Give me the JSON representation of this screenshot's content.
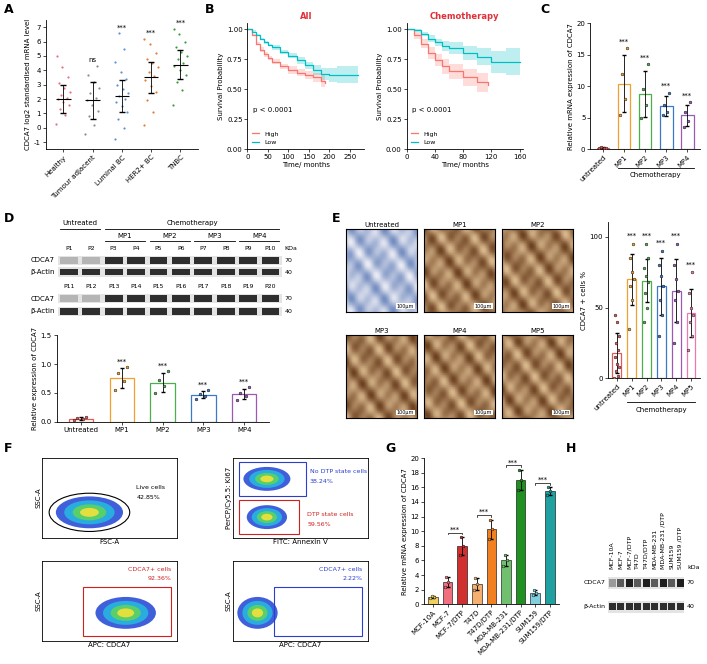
{
  "chart_data": [
    {
      "panel": "A",
      "type": "dot_plot",
      "categories": [
        "Healthy",
        "Tumour adjacent",
        "Luminal BC",
        "HER2+ BC",
        "TNBC"
      ],
      "colors": [
        "#e8707d",
        "#8c8c8c",
        "#5b8fd1",
        "#e07b39",
        "#3a9a3a"
      ],
      "points": [
        [
          0.3,
          0.9,
          1.3,
          1.6,
          1.8,
          2.0,
          2.1,
          2.3,
          2.5,
          2.8,
          3.1,
          3.5,
          4.2,
          5.0
        ],
        [
          -0.4,
          0.2,
          0.8,
          1.2,
          1.6,
          1.9,
          2.1,
          2.4,
          2.8,
          3.2,
          3.7,
          4.3
        ],
        [
          -0.8,
          0.0,
          0.6,
          1.1,
          1.5,
          1.8,
          2.0,
          2.2,
          2.4,
          2.7,
          3.0,
          3.4,
          3.9,
          4.6,
          5.5,
          6.6
        ],
        [
          0.2,
          1.1,
          1.9,
          2.5,
          2.9,
          3.3,
          3.6,
          3.9,
          4.2,
          4.5,
          4.8,
          5.2,
          5.8,
          6.2
        ],
        [
          1.6,
          2.6,
          3.2,
          3.7,
          4.0,
          4.3,
          4.5,
          4.8,
          5.0,
          5.3,
          5.6,
          6.0,
          6.5,
          6.9
        ]
      ],
      "means": [
        2.0,
        1.9,
        2.2,
        3.5,
        4.4
      ],
      "sd": [
        1.0,
        1.3,
        1.1,
        1.1,
        1.0
      ],
      "annotations": [
        null,
        "ns",
        "***",
        "***",
        "***"
      ],
      "y_label": "CDCA7 log2 standardised mRNA level",
      "ylim": [
        -1.5,
        7.5
      ],
      "yticks": [
        -1,
        0,
        1,
        2,
        3,
        4,
        5,
        6,
        7
      ]
    },
    {
      "panel": "B",
      "type": "survival",
      "title": "All",
      "x_label": "Time/ months",
      "y_label": "Survival Probability",
      "annotation": "p < 0.0001",
      "legend": "lower left",
      "xlim": [
        0,
        285
      ],
      "xticks": [
        0,
        50,
        100,
        150,
        200,
        250
      ],
      "ylim": [
        0,
        1.05
      ],
      "yticks": [
        {
          "value": 0,
          "label": "0.00"
        },
        {
          "value": 0.25,
          "label": "0.25"
        },
        {
          "value": 0.5,
          "label": "0.50"
        },
        {
          "value": 0.75,
          "label": "0.75"
        },
        {
          "value": 1,
          "label": "1.00"
        }
      ],
      "series": [
        {
          "name": "High",
          "color": "#f8766d",
          "x": [
            0,
            10,
            20,
            30,
            40,
            50,
            60,
            80,
            100,
            120,
            140,
            160,
            180,
            190
          ],
          "values": [
            1.0,
            0.95,
            0.88,
            0.83,
            0.79,
            0.76,
            0.73,
            0.69,
            0.66,
            0.64,
            0.62,
            0.6,
            0.57,
            0.55
          ],
          "lower": [
            1.0,
            0.94,
            0.87,
            0.81,
            0.77,
            0.74,
            0.71,
            0.67,
            0.63,
            0.61,
            0.59,
            0.56,
            0.52,
            0.49
          ],
          "upper": [
            1.0,
            0.96,
            0.89,
            0.85,
            0.81,
            0.78,
            0.75,
            0.71,
            0.69,
            0.67,
            0.65,
            0.64,
            0.62,
            0.61
          ]
        },
        {
          "name": "Low",
          "color": "#00bfc4",
          "x": [
            0,
            10,
            20,
            30,
            40,
            50,
            60,
            80,
            100,
            120,
            140,
            160,
            180,
            200,
            220,
            250,
            270
          ],
          "values": [
            1.0,
            0.98,
            0.95,
            0.92,
            0.89,
            0.87,
            0.85,
            0.81,
            0.78,
            0.74,
            0.7,
            0.66,
            0.63,
            0.62,
            0.62,
            0.62,
            0.62
          ],
          "lower": [
            1.0,
            0.97,
            0.94,
            0.91,
            0.88,
            0.86,
            0.83,
            0.79,
            0.76,
            0.71,
            0.67,
            0.62,
            0.58,
            0.56,
            0.55,
            0.55,
            0.55
          ],
          "upper": [
            1.0,
            0.99,
            0.96,
            0.93,
            0.9,
            0.88,
            0.87,
            0.83,
            0.8,
            0.77,
            0.73,
            0.7,
            0.68,
            0.68,
            0.69,
            0.69,
            0.69
          ]
        }
      ]
    },
    {
      "type": "survival",
      "title": "Chemotherapy",
      "x_label": "Time/ months",
      "y_label": "Survival Probability",
      "annotation": "p < 0.0001",
      "legend": "lower left",
      "xlim": [
        0,
        165
      ],
      "xticks": [
        0,
        40,
        80,
        120,
        160
      ],
      "ylim": [
        0,
        1.05
      ],
      "yticks": [
        {
          "value": 0,
          "label": "0.00"
        },
        {
          "value": 0.25,
          "label": "0.25"
        },
        {
          "value": 0.5,
          "label": "0.50"
        },
        {
          "value": 0.75,
          "label": "0.75"
        },
        {
          "value": 1,
          "label": "1.00"
        }
      ],
      "series": [
        {
          "name": "High",
          "color": "#f8766d",
          "x": [
            0,
            10,
            20,
            30,
            40,
            50,
            60,
            80,
            100,
            115
          ],
          "values": [
            1.0,
            0.95,
            0.88,
            0.8,
            0.74,
            0.69,
            0.65,
            0.6,
            0.56,
            0.54
          ],
          "lower": [
            1.0,
            0.92,
            0.84,
            0.75,
            0.69,
            0.63,
            0.59,
            0.53,
            0.48,
            0.45
          ],
          "upper": [
            1.0,
            0.98,
            0.92,
            0.85,
            0.79,
            0.75,
            0.71,
            0.67,
            0.64,
            0.63
          ]
        },
        {
          "name": "Low",
          "color": "#00bfc4",
          "x": [
            0,
            10,
            20,
            30,
            40,
            50,
            60,
            80,
            100,
            120,
            140,
            160
          ],
          "values": [
            1.0,
            0.99,
            0.96,
            0.92,
            0.89,
            0.86,
            0.84,
            0.8,
            0.77,
            0.73,
            0.73,
            0.73
          ],
          "lower": [
            1.0,
            0.98,
            0.94,
            0.89,
            0.86,
            0.82,
            0.79,
            0.74,
            0.7,
            0.64,
            0.62,
            0.6
          ],
          "upper": [
            1.0,
            1.0,
            0.98,
            0.95,
            0.92,
            0.9,
            0.89,
            0.86,
            0.84,
            0.82,
            0.84,
            0.86
          ]
        }
      ]
    },
    {
      "panel": "C",
      "type": "bar",
      "categories": [
        "untreated",
        "MP1",
        "MP2",
        "MP3",
        "MP4"
      ],
      "colors": [
        "#e05a5a",
        "#f0a030",
        "#4cae4c",
        "#3a78c8",
        "#9b59b6"
      ],
      "values": [
        0.3,
        10.4,
        8.8,
        6.9,
        5.4
      ],
      "errors": [
        0.1,
        4.5,
        3.6,
        1.6,
        1.7
      ],
      "points": [
        [
          0.2,
          0.3,
          0.4,
          0.3
        ],
        [
          5.5,
          8.0,
          12.0,
          16.0
        ],
        [
          5.0,
          7.0,
          9.5,
          13.5
        ],
        [
          5.5,
          6.0,
          7.0,
          9.0
        ],
        [
          3.5,
          4.5,
          6.0,
          7.5
        ]
      ],
      "annotations": [
        null,
        "***",
        "***",
        "***",
        "***"
      ],
      "group": {
        "label": "Chemotherapy",
        "from": 1,
        "to": 4
      },
      "y_label": "Relative mRNA expression of CDCA7",
      "ylim": [
        0,
        20
      ],
      "yticks": [
        0,
        5,
        10,
        15,
        20
      ]
    },
    {
      "type": "bar",
      "categories": [
        "Untreated",
        "MP1",
        "MP2",
        "MP3",
        "MP4"
      ],
      "colors": [
        "#e05a5a",
        "#f0a030",
        "#4cae4c",
        "#3a78c8",
        "#9b59b6"
      ],
      "values": [
        0.05,
        0.76,
        0.68,
        0.47,
        0.48
      ],
      "errors": [
        0.03,
        0.17,
        0.16,
        0.06,
        0.09
      ],
      "points": [
        [
          0.02,
          0.04,
          0.06,
          0.08
        ],
        [
          0.55,
          0.7,
          0.85,
          0.95
        ],
        [
          0.5,
          0.62,
          0.72,
          0.88
        ],
        [
          0.4,
          0.45,
          0.48,
          0.55
        ],
        [
          0.38,
          0.45,
          0.5,
          0.6
        ]
      ],
      "annotations": [
        null,
        "***",
        "***",
        "***",
        "***"
      ],
      "y_label": "Relative expression of CDCA7",
      "ylim": [
        0,
        1.5
      ],
      "yticks": [
        {
          "value": 0,
          "label": "0.0"
        },
        0.5,
        {
          "value": 1,
          "label": "1.0"
        },
        1.5
      ]
    },
    {
      "type": "bar",
      "categories": [
        "untreated",
        "MP1",
        "MP2",
        "MP3",
        "MP4",
        "MP5"
      ],
      "colors": [
        "#e05a5a",
        "#f0a030",
        "#4cae4c",
        "#3a78c8",
        "#9b59b6",
        "#e87ab0"
      ],
      "values": [
        18,
        70,
        69,
        65,
        62,
        46
      ],
      "errors": [
        14,
        18,
        15,
        20,
        22,
        17
      ],
      "points": [
        [
          0,
          2,
          5,
          8,
          10,
          15,
          20,
          25,
          30,
          40,
          45
        ],
        [
          35,
          55,
          65,
          70,
          75,
          85,
          95
        ],
        [
          40,
          50,
          60,
          68,
          72,
          78,
          85,
          95
        ],
        [
          30,
          45,
          55,
          65,
          72,
          80,
          90
        ],
        [
          25,
          40,
          55,
          62,
          70,
          80,
          95
        ],
        [
          20,
          30,
          40,
          45,
          50,
          60,
          75
        ]
      ],
      "annotations": [
        null,
        "***",
        "***",
        "***",
        "***",
        "***"
      ],
      "group": {
        "label": "Chemotherapy",
        "from": 1,
        "to": 5
      },
      "y_label": "CDCA7 + cells %",
      "ylim": [
        0,
        110
      ],
      "yticks": [
        0,
        50,
        100
      ]
    },
    {
      "panel": "G",
      "type": "bar",
      "categories": [
        "MCF-10A",
        "MCF-7",
        "MCF-7/DTP",
        "T47D",
        "T47D/DTP",
        "MDA-MB-231",
        "MDA-MB-231/DTP",
        "SUM159",
        "SUM159/DTP"
      ],
      "colors": [
        "#f0d060",
        "#f07080",
        "#d03030",
        "#f5b070",
        "#f08020",
        "#70c070",
        "#209020",
        "#80d0e0",
        "#20a0a0"
      ],
      "values": [
        1.0,
        3.0,
        8.0,
        2.8,
        10.3,
        6.0,
        17.0,
        1.6,
        15.5
      ],
      "errors": [
        0.1,
        0.7,
        1.2,
        0.8,
        1.3,
        0.8,
        1.4,
        0.3,
        0.5
      ],
      "points": [
        [
          0.9,
          1.0,
          1.1
        ],
        [
          2.3,
          3.0,
          3.7
        ],
        [
          6.8,
          8.0,
          9.2
        ],
        [
          2.0,
          2.8,
          3.6
        ],
        [
          9.0,
          10.3,
          11.6
        ],
        [
          5.2,
          6.0,
          6.8
        ],
        [
          15.6,
          17.0,
          18.4
        ],
        [
          1.3,
          1.6,
          1.9
        ],
        [
          15.0,
          15.5,
          16.0
        ]
      ],
      "comparisons": [
        {
          "pair": [
            1,
            2
          ],
          "label": "***"
        },
        {
          "pair": [
            3,
            4
          ],
          "label": "***"
        },
        {
          "pair": [
            5,
            6
          ],
          "label": "***"
        },
        {
          "pair": [
            7,
            8
          ],
          "label": "***"
        }
      ],
      "y_label": "Relative mRNA expression of CDCA7",
      "ylim": [
        0,
        20
      ],
      "yticks": [
        0,
        2,
        4,
        6,
        8,
        10,
        12,
        14,
        16,
        18,
        20
      ]
    }
  ],
  "blots": [
    {
      "panel": "D",
      "treatment_label": "Chemotherapy",
      "groups": [
        {
          "label": "Untreated",
          "lanes": [
            "P1",
            "P2"
          ],
          "lanes_2": [
            "P11",
            "P12"
          ]
        },
        {
          "label": "MP1",
          "lanes": [
            "P3",
            "P4"
          ],
          "lanes_2": [
            "P13",
            "P14"
          ]
        },
        {
          "label": "MP2",
          "lanes": [
            "P5",
            "P6"
          ],
          "lanes_2": [
            "P15",
            "P16"
          ]
        },
        {
          "label": "MP3",
          "lanes": [
            "P7",
            "P8"
          ],
          "lanes_2": [
            "P17",
            "P18"
          ]
        },
        {
          "label": "MP4",
          "lanes": [
            "P9",
            "P10"
          ],
          "lanes_2": [
            "P19",
            "P20"
          ]
        }
      ],
      "rows": [
        "CDCA7",
        "β-Actin"
      ],
      "markers": [
        "70",
        "40"
      ],
      "unit": "KDa"
    },
    {
      "panel": "H",
      "lanes": [
        "MCF-10A",
        "MCF-7",
        "MCF-7/DTP",
        "T47D",
        "T47D/DTP",
        "MDA-MB-231",
        "MDA-MB-231 /DTP",
        "SUM159",
        "SUM159 /DTP"
      ],
      "rows": [
        "CDCA7",
        "β-Actin"
      ],
      "markers": [
        "70",
        "40"
      ],
      "unit": "kDa"
    }
  ],
  "ihc_images": {
    "panel": "E",
    "images": [
      "Untreated",
      "MP1",
      "MP2",
      "MP3",
      "MP4",
      "MP5"
    ],
    "scale_bar": "100μm"
  },
  "flow_cytometry": {
    "panel": "F",
    "plots": [
      {
        "x_label": "FSC-A",
        "y_label": "SSC-A",
        "gates": [
          {
            "label": "Live cells",
            "value_label": "42.85%",
            "color": "#000000"
          }
        ]
      },
      {
        "x_label": "FITC: Annexin V",
        "y_label": "PerCP/Cy5.5: Ki67",
        "gates": [
          {
            "label": "No DTP state cells",
            "value_label": "38.24%",
            "color": "#2a3fd0"
          },
          {
            "label": "DTP state cells",
            "value_label": "59.56%",
            "color": "#d02020"
          }
        ]
      },
      {
        "x_label": "APC: CDCA7",
        "y_label": "SSC-A",
        "gates": [
          {
            "label": "CDCA7+ cells",
            "value_label": "92.36%",
            "color": "#d02020"
          }
        ]
      },
      {
        "x_label": "APC: CDCA7",
        "y_label": "SSC-A",
        "gates": [
          {
            "label": "CDCA7+ cells",
            "value_label": "2.22%",
            "color": "#2a3fd0"
          }
        ]
      }
    ]
  }
}
